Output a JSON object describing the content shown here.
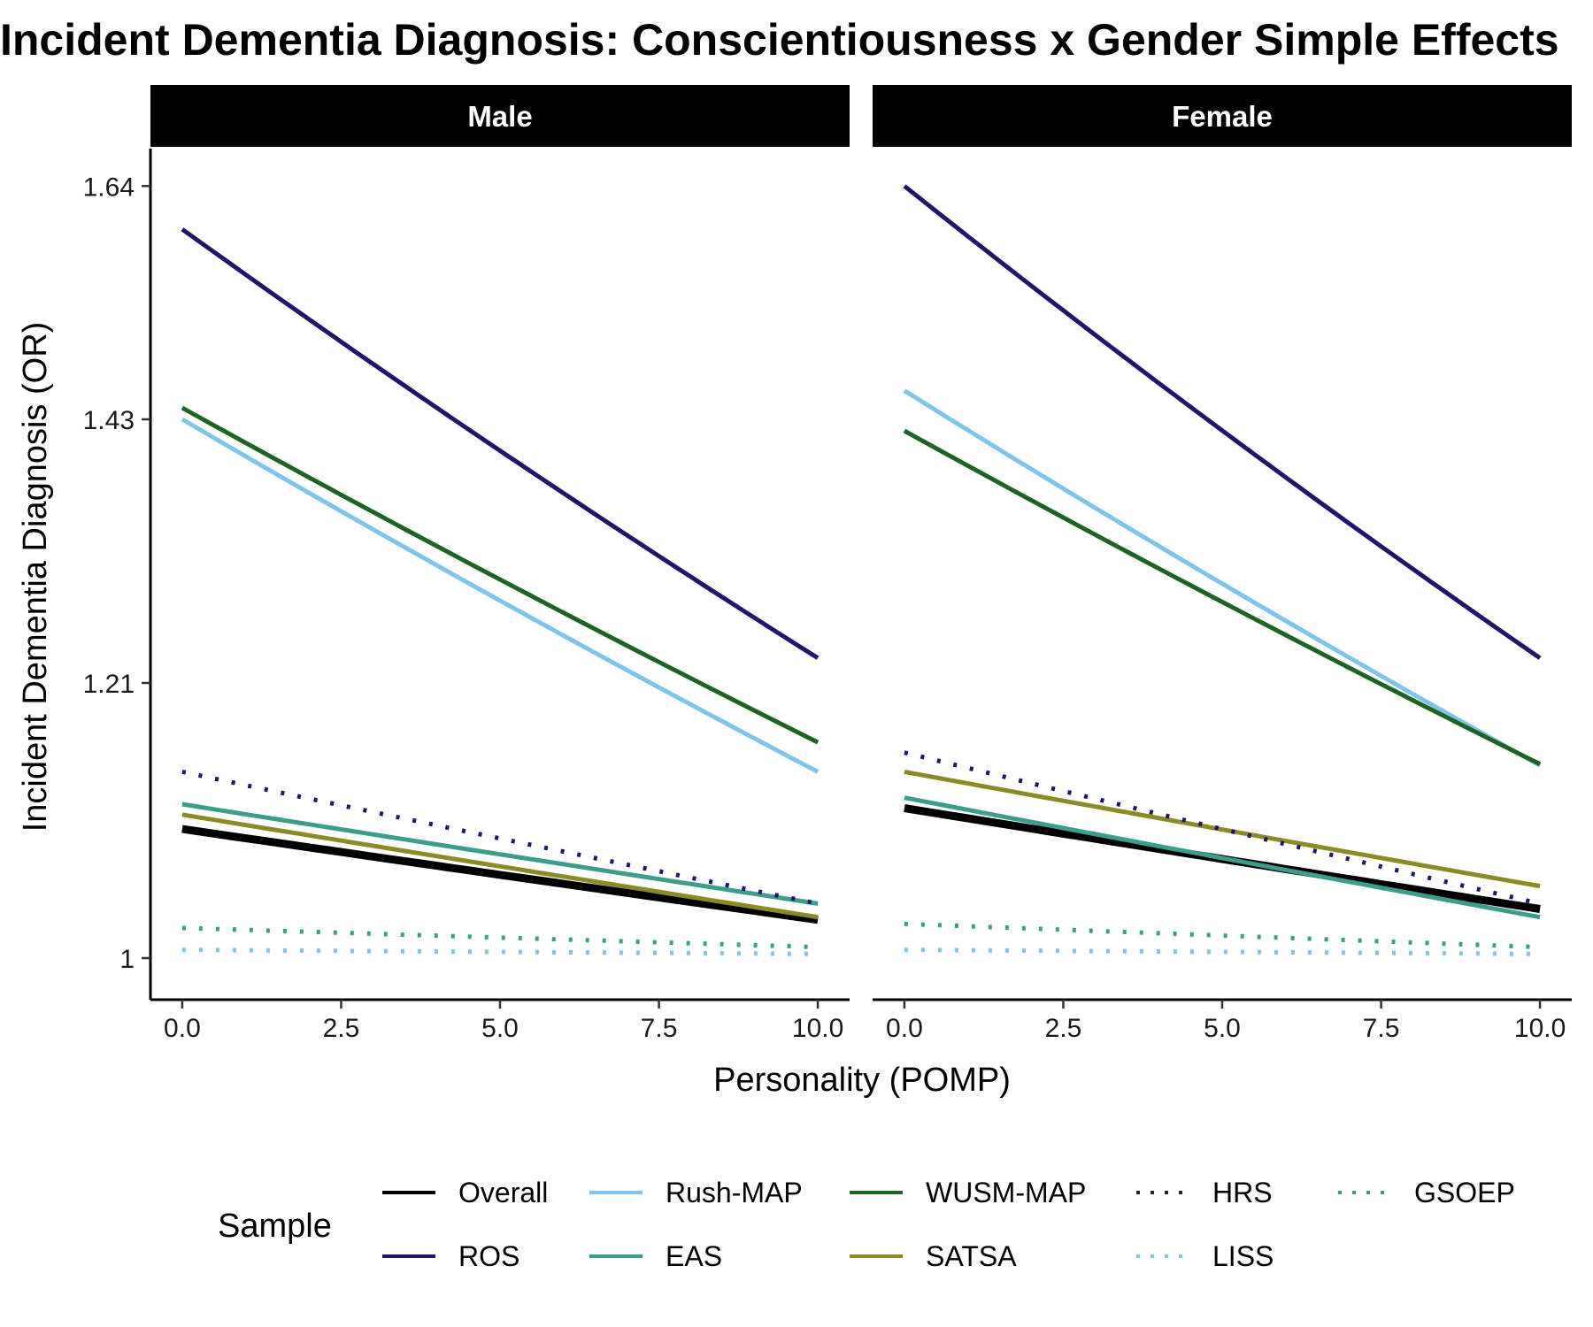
{
  "chart_data": {
    "type": "line",
    "title": "Incident Dementia Diagnosis: Conscientiousness x Gender Simple Effects",
    "xlabel": "Personality (POMP)",
    "ylabel": "Incident Dementia Diagnosis (OR)",
    "xlim": [
      -0.5,
      10.5
    ],
    "ylim": [
      0.97,
      1.675
    ],
    "x_ticks": [
      0,
      2.5,
      5,
      7.5,
      10
    ],
    "x_tick_labels": [
      "0.0",
      "2.5",
      "5.0",
      "7.5",
      "10.0"
    ],
    "y_ticks": [
      1,
      1.21,
      1.43,
      1.64
    ],
    "y_tick_labels": [
      "1",
      "1.21",
      "1.43",
      "1.64"
    ],
    "grid": false,
    "legend_title": "Sample",
    "legend_position": "bottom",
    "facets": [
      "Male",
      "Female"
    ],
    "series": [
      {
        "name": "Overall",
        "color": "#000000",
        "dash": "solid",
        "facet_values": {
          "Male": [
            1.096,
            1.028
          ],
          "Female": [
            1.112,
            1.036
          ]
        }
      },
      {
        "name": "ROS",
        "color": "#24136b",
        "dash": "solid",
        "facet_values": {
          "Male": [
            1.6,
            1.23
          ],
          "Female": [
            1.64,
            1.23
          ]
        }
      },
      {
        "name": "Rush-MAP",
        "color": "#7fc4ea",
        "dash": "solid",
        "facet_values": {
          "Male": [
            1.43,
            1.14
          ],
          "Female": [
            1.455,
            1.145
          ]
        }
      },
      {
        "name": "EAS",
        "color": "#3a9e8a",
        "dash": "solid",
        "facet_values": {
          "Male": [
            1.115,
            1.04
          ],
          "Female": [
            1.12,
            1.03
          ]
        }
      },
      {
        "name": "WUSM-MAP",
        "color": "#1d6324",
        "dash": "solid",
        "facet_values": {
          "Male": [
            1.44,
            1.163
          ],
          "Female": [
            1.42,
            1.146
          ]
        }
      },
      {
        "name": "SATSA",
        "color": "#8c8a27",
        "dash": "solid",
        "facet_values": {
          "Male": [
            1.107,
            1.03
          ],
          "Female": [
            1.14,
            1.053
          ]
        }
      },
      {
        "name": "HRS",
        "color": "#24136b",
        "dash": "dotted",
        "facet_values": {
          "Male": [
            1.14,
            1.04
          ],
          "Female": [
            1.155,
            1.04
          ]
        }
      },
      {
        "name": "LISS",
        "color": "#7fc4ea",
        "dash": "dotted",
        "facet_values": {
          "Male": [
            1.006,
            1.003
          ],
          "Female": [
            1.006,
            1.003
          ]
        }
      },
      {
        "name": "GSOEP",
        "color": "#3a9e8a",
        "dash": "dotted",
        "facet_values": {
          "Male": [
            1.022,
            1.008
          ],
          "Female": [
            1.025,
            1.008
          ]
        }
      }
    ]
  }
}
